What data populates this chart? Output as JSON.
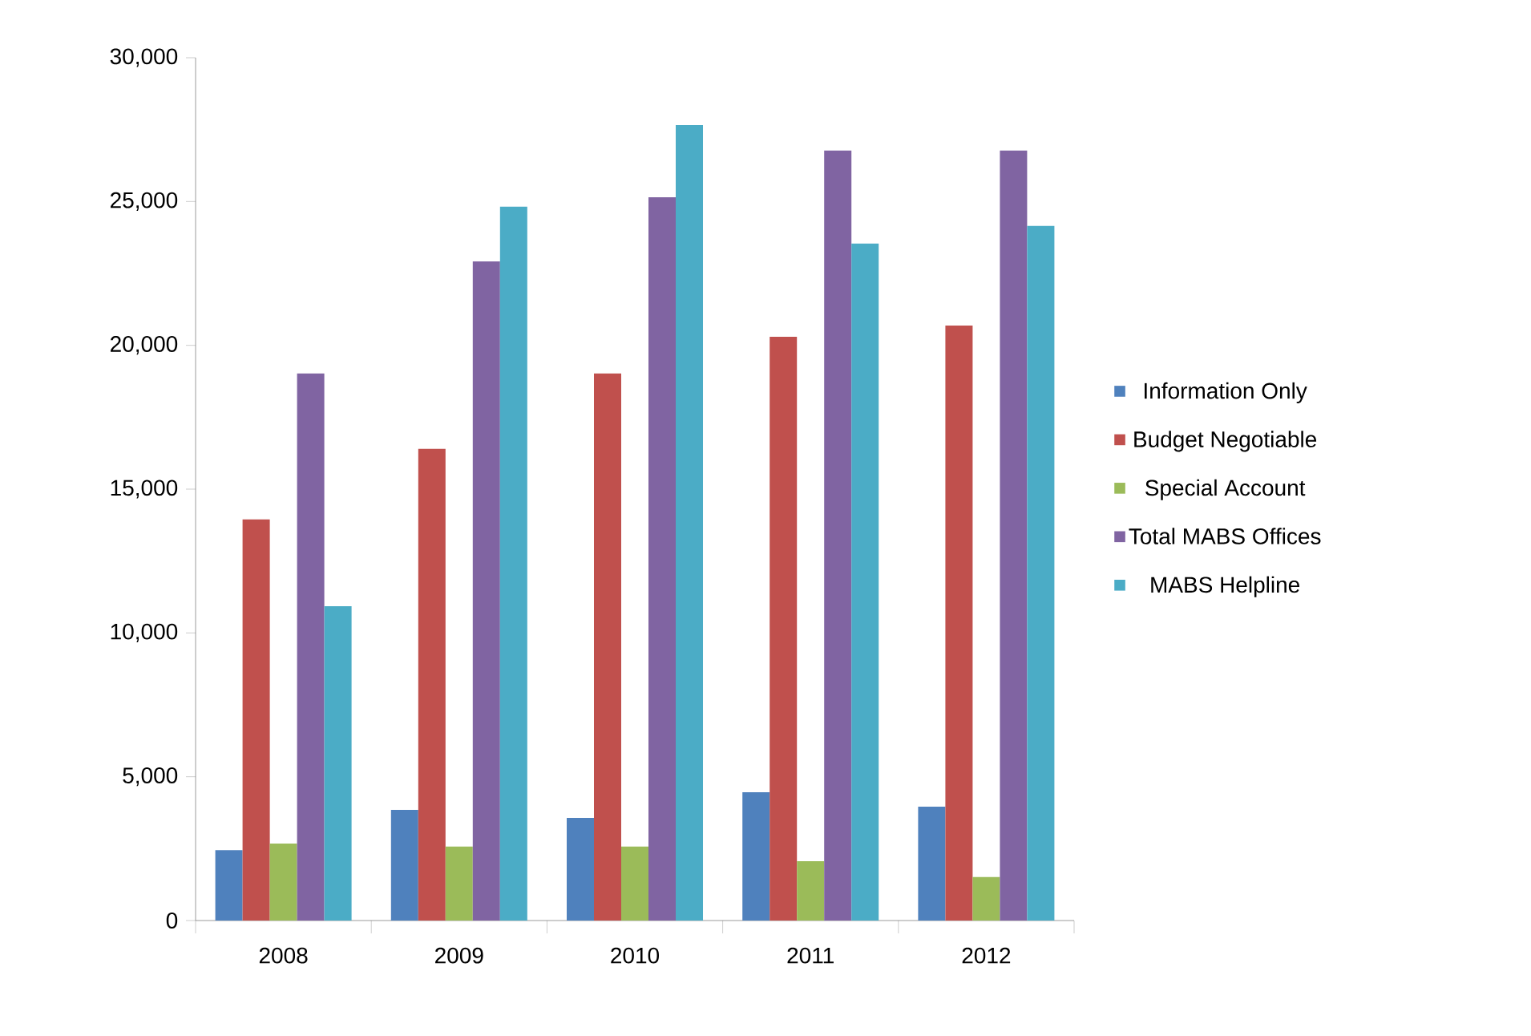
{
  "chart_data": {
    "type": "bar",
    "categories": [
      "2008",
      "2009",
      "2010",
      "2011",
      "2012"
    ],
    "series": [
      {
        "name": "Information Only",
        "color": "#4f81bd",
        "values": [
          2450,
          3850,
          3570,
          4460,
          3960
        ]
      },
      {
        "name": "Budget Negotiable",
        "color": "#c0504d",
        "values": [
          13950,
          16400,
          19020,
          20300,
          20690
        ]
      },
      {
        "name": "Special Account",
        "color": "#9bbb59",
        "values": [
          2680,
          2570,
          2570,
          2060,
          1510
        ]
      },
      {
        "name": "Total MABS Offices",
        "color": "#8064a2",
        "values": [
          19020,
          22920,
          25150,
          26770,
          26770
        ]
      },
      {
        "name": "MABS Helpline",
        "color": "#4bacc6",
        "values": [
          10930,
          24820,
          27660,
          23540,
          24150
        ]
      }
    ],
    "ylim": [
      0,
      30000
    ],
    "yticks": [
      {
        "value": 0,
        "label": "0"
      },
      {
        "value": 5000,
        "label": "5,000"
      },
      {
        "value": 10000,
        "label": "10,000"
      },
      {
        "value": 15000,
        "label": "15,000"
      },
      {
        "value": 20000,
        "label": "20,000"
      },
      {
        "value": 25000,
        "label": "25,000"
      },
      {
        "value": 30000,
        "label": "30,000"
      }
    ],
    "grid": false,
    "legend": "right"
  }
}
